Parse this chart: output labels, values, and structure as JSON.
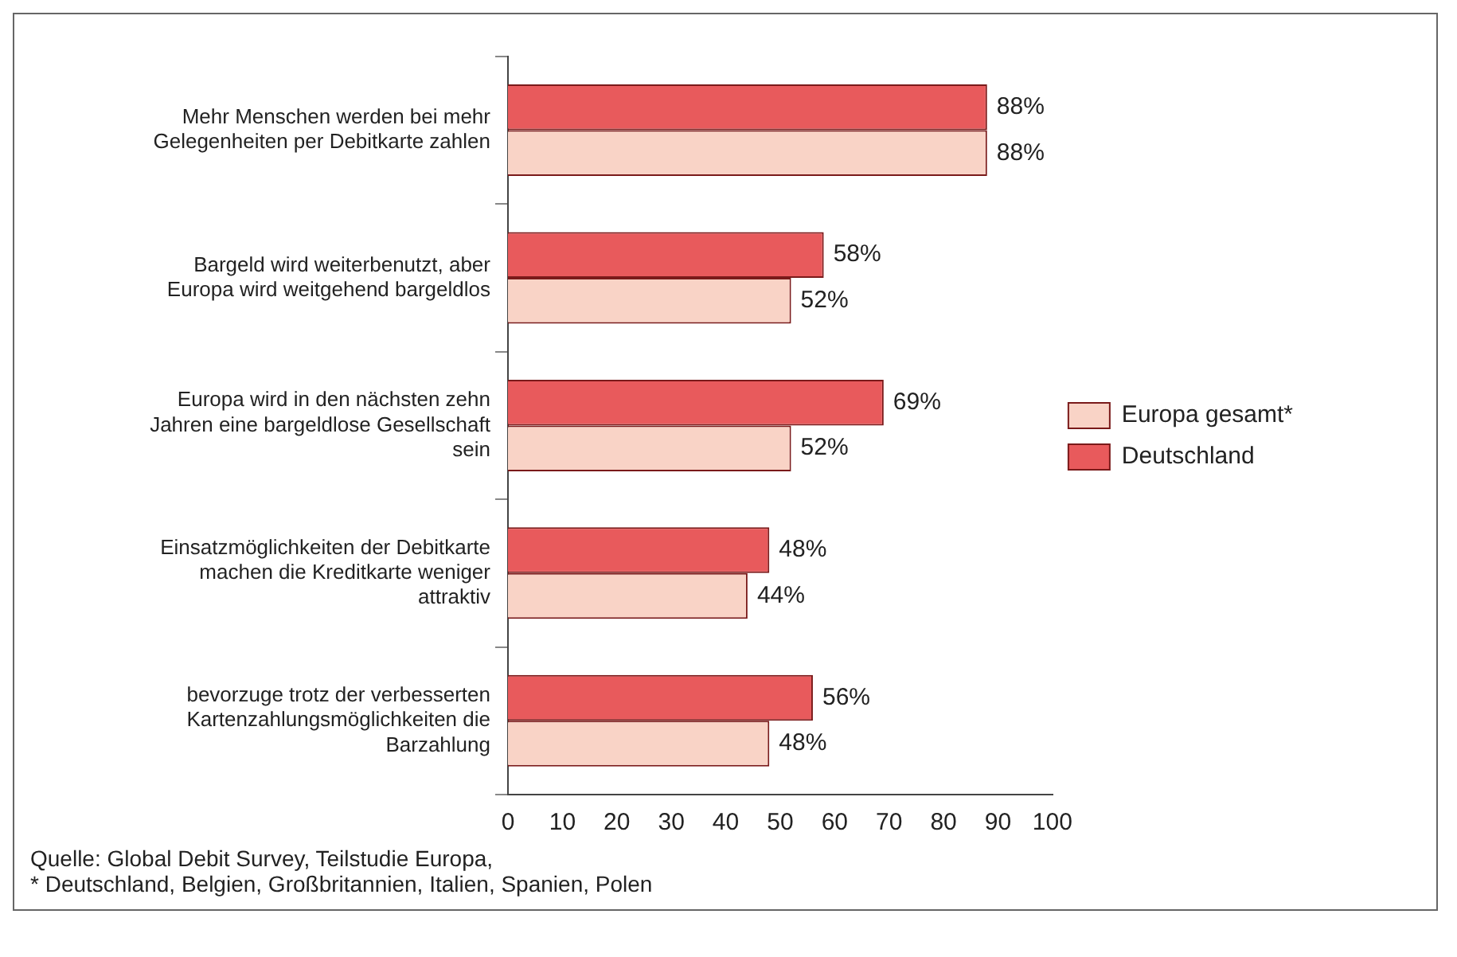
{
  "chart_data": {
    "type": "bar",
    "orientation": "horizontal",
    "categories": [
      "Mehr Menschen werden bei mehr Gelegenheiten per Debitkarte zahlen",
      "Bargeld wird weiterbenutzt, aber Europa wird weitgehend bargeldlos",
      "Europa wird in den nächsten zehn Jahren eine bargeldlose Gesellschaft sein",
      "Einsatzmöglichkeiten der Debitkarte machen die Kreditkarte weniger attraktiv",
      "bevorzuge trotz der verbesserten Kartenzahlungsmöglichkeiten die Barzahlung"
    ],
    "series": [
      {
        "name": "Deutschland",
        "color": "#e85a5c",
        "values": [
          88,
          58,
          69,
          48,
          56
        ],
        "value_labels": [
          "88%",
          "58%",
          "69%",
          "48%",
          "56%"
        ]
      },
      {
        "name": "Europa gesamt*",
        "color": "#f9d3c6",
        "values": [
          88,
          52,
          52,
          44,
          48
        ],
        "value_labels": [
          "88%",
          "52%",
          "52%",
          "44%",
          "48%"
        ]
      }
    ],
    "xlim": [
      0,
      100
    ],
    "xticks": [
      0,
      10,
      20,
      30,
      40,
      50,
      60,
      70,
      80,
      90,
      100
    ],
    "grid": false,
    "legend": "right",
    "annotations": [
      "Quelle: Global Debit Survey, Teilstudie Europa,",
      "* Deutschland, Belgien, Großbritannien, Italien, Spanien, Polen"
    ]
  }
}
